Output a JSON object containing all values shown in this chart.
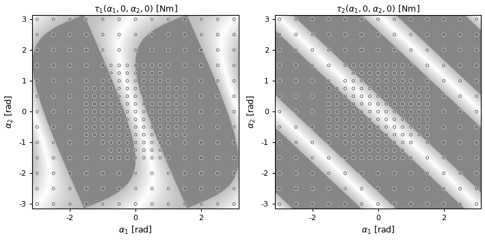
{
  "title1": "$\\tau_1(\\alpha_1,0,\\alpha_2,0)$ [Nm]",
  "title2": "$\\tau_2(\\alpha_1,0,\\alpha_2,0)$ [Nm]",
  "xlabel": "$\\alpha_1$ [rad]",
  "ylabel": "$\\alpha_2$ [rad]",
  "xticks": [
    -2,
    0,
    2
  ],
  "yticks": [
    -3,
    -2,
    -1,
    0,
    1,
    2,
    3
  ],
  "ytick_labels": [
    "-3",
    "-2",
    "-1",
    "0",
    "1",
    "2",
    "3"
  ],
  "xtick_labels": [
    "-2",
    "0",
    "2"
  ],
  "figsize": [
    7.09,
    3.51
  ],
  "dpi": 100,
  "bg_dark_gray": "#888888",
  "bg_light_gray": "#cccccc",
  "bg_white": "#ffffff",
  "dot_gray": "#707070",
  "circle_face": "none",
  "circle_edge_light": "#ffffff",
  "circle_edge_dark": "#444444",
  "spine_color": "#000000",
  "title_fontsize": 9,
  "label_fontsize": 9,
  "tick_fontsize": 8
}
